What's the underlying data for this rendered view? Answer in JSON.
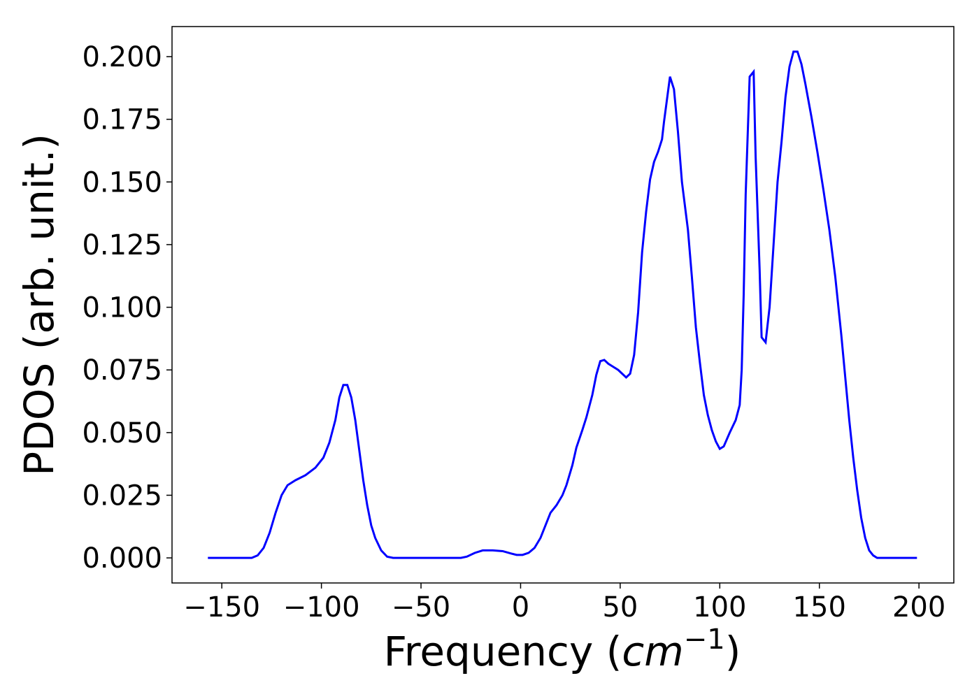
{
  "chart_data": {
    "type": "line",
    "xlabel": {
      "text": "Frequency (",
      "var": "cm",
      "sup": "−1",
      "end": ")"
    },
    "ylabel": "PDOS (arb. unit.)",
    "xlim": [
      -175,
      217.5
    ],
    "ylim": [
      -0.01,
      0.212
    ],
    "xticks": [
      {
        "value": -150,
        "label": "−150"
      },
      {
        "value": -100,
        "label": "−100"
      },
      {
        "value": -50,
        "label": "−50"
      },
      0,
      50,
      100,
      150,
      200
    ],
    "yticks": [
      {
        "value": 0,
        "label": "0.000"
      },
      {
        "value": 0.025,
        "label": "0.025"
      },
      {
        "value": 0.05,
        "label": "0.050"
      },
      {
        "value": 0.075,
        "label": "0.075"
      },
      {
        "value": 0.1,
        "label": "0.100"
      },
      {
        "value": 0.125,
        "label": "0.125"
      },
      {
        "value": 0.15,
        "label": "0.150"
      },
      {
        "value": 0.175,
        "label": "0.175"
      },
      {
        "value": 0.2,
        "label": "0.200"
      }
    ],
    "x": [
      -157,
      -135,
      -132,
      -129,
      -126,
      -123,
      -120,
      -117,
      -113,
      -108,
      -103,
      -99,
      -96,
      -93,
      -91,
      -89,
      -87,
      -85,
      -83,
      -81,
      -79,
      -77,
      -75,
      -73,
      -70,
      -67,
      -64,
      -30,
      -27,
      -23,
      -19,
      -14,
      -9,
      -5,
      -2,
      1,
      4,
      7,
      10,
      13,
      15,
      18,
      21,
      23,
      26,
      28,
      31,
      33,
      36,
      38,
      40,
      42,
      44,
      46,
      49,
      51,
      53,
      55,
      57,
      59,
      61,
      63,
      65,
      67,
      69,
      71,
      72,
      74,
      75,
      77,
      79,
      81,
      84,
      86,
      88,
      90,
      92,
      94,
      96,
      98,
      100,
      102,
      105,
      108,
      110,
      111,
      112,
      113,
      115,
      117,
      118,
      120,
      121,
      123,
      125,
      127,
      129,
      131,
      133,
      135,
      137,
      139,
      141,
      143,
      146,
      149,
      152,
      155,
      158,
      161,
      163,
      165,
      167,
      169,
      171,
      173,
      175,
      177,
      179,
      199
    ],
    "series": [
      {
        "color": "#0000ff",
        "values": [
          0,
          0,
          0.001,
          0.004,
          0.01,
          0.018,
          0.025,
          0.029,
          0.031,
          0.033,
          0.036,
          0.04,
          0.046,
          0.055,
          0.064,
          0.069,
          0.069,
          0.064,
          0.055,
          0.043,
          0.031,
          0.021,
          0.013,
          0.008,
          0.003,
          0.0005,
          0,
          0,
          0.0005,
          0.002,
          0.003,
          0.003,
          0.0027,
          0.0018,
          0.0012,
          0.0012,
          0.002,
          0.004,
          0.008,
          0.014,
          0.018,
          0.021,
          0.025,
          0.029,
          0.037,
          0.044,
          0.051,
          0.056,
          0.065,
          0.073,
          0.0785,
          0.079,
          0.0775,
          0.0765,
          0.075,
          0.0735,
          0.072,
          0.0735,
          0.081,
          0.098,
          0.122,
          0.138,
          0.151,
          0.158,
          0.162,
          0.167,
          0.174,
          0.186,
          0.192,
          0.187,
          0.17,
          0.15,
          0.131,
          0.112,
          0.092,
          0.078,
          0.065,
          0.057,
          0.051,
          0.0465,
          0.0435,
          0.0445,
          0.05,
          0.055,
          0.061,
          0.075,
          0.105,
          0.145,
          0.192,
          0.194,
          0.16,
          0.115,
          0.088,
          0.086,
          0.1,
          0.125,
          0.15,
          0.166,
          0.184,
          0.196,
          0.202,
          0.202,
          0.197,
          0.189,
          0.176,
          0.162,
          0.147,
          0.131,
          0.112,
          0.089,
          0.072,
          0.055,
          0.04,
          0.027,
          0.016,
          0.008,
          0.003,
          0.001,
          0,
          0
        ]
      }
    ]
  }
}
